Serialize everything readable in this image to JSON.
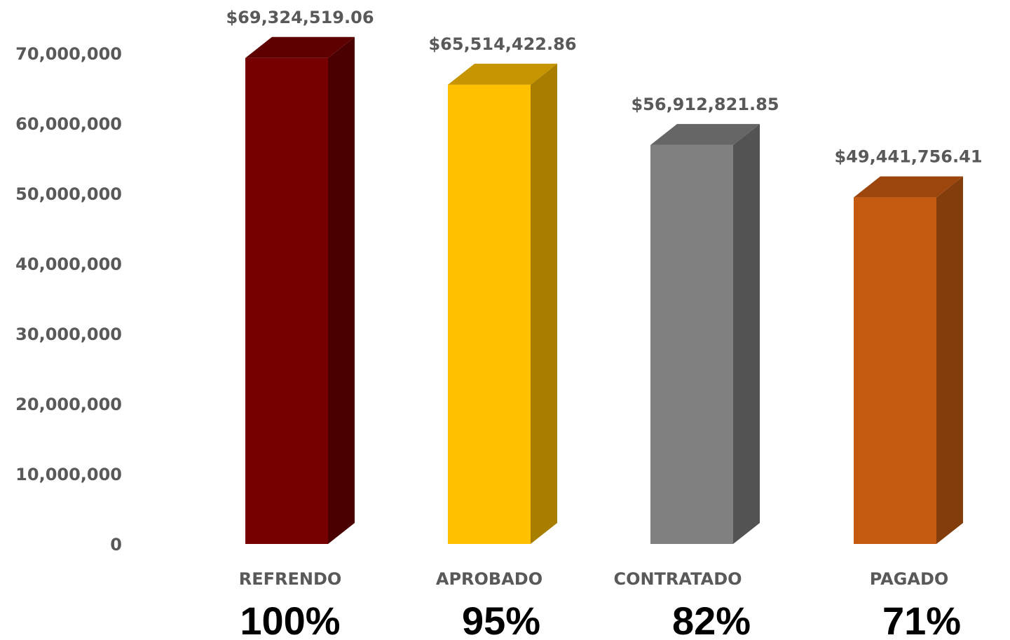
{
  "chart_data": {
    "type": "bar",
    "categories": [
      "REFRENDO",
      "APROBADO",
      "CONTRATADO",
      "PAGADO"
    ],
    "values": [
      69324519.06,
      65514422.86,
      56912821.85,
      49441756.41
    ],
    "data_labels": [
      "$69,324,519.06",
      "$65,514,422.86",
      "$56,912,821.85",
      "$49,441,756.41"
    ],
    "percent_labels": [
      "100%",
      "95%",
      "82%",
      "71%"
    ],
    "ylim": [
      0,
      70000000
    ],
    "yticks": [
      0,
      10000000,
      20000000,
      30000000,
      40000000,
      50000000,
      60000000,
      70000000
    ],
    "ytick_labels": [
      "0",
      "10,000,000",
      "20,000,000",
      "30,000,000",
      "40,000,000",
      "50,000,000",
      "60,000,000",
      "70,000,000"
    ],
    "title": "",
    "xlabel": "",
    "ylabel": "",
    "grid": false,
    "legend": "none",
    "style": "3d-bar",
    "colors": {
      "front": [
        "#760000",
        "#FFC000",
        "#808080",
        "#C55A11"
      ],
      "side": [
        "#4A0000",
        "#A77E00",
        "#535353",
        "#833C0B"
      ],
      "top": [
        "#5E0000",
        "#C69500",
        "#666666",
        "#9C460D"
      ],
      "text": "#595959",
      "percent": "#000000"
    }
  }
}
